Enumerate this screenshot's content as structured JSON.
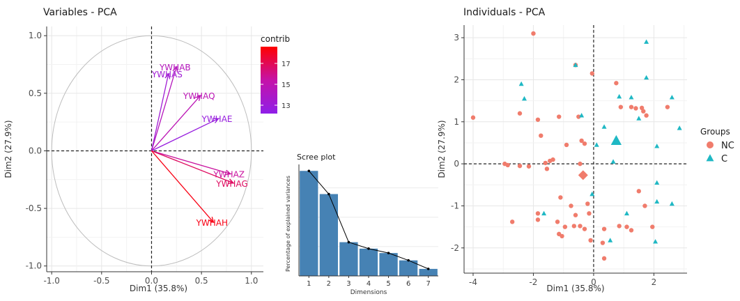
{
  "chart_data": [
    {
      "type": "scatter",
      "title": "Variables - PCA",
      "xlabel": "Dim1 (35.8%)",
      "ylabel": "Dim2 (27.9%)",
      "xlim": [
        -1.05,
        1.12
      ],
      "ylim": [
        -1.05,
        1.08
      ],
      "xticks": [
        "-1.0",
        "-0.5",
        "0.0",
        "0.5",
        "1.0"
      ],
      "yticks": [
        "-1.0",
        "-0.5",
        "0.0",
        "0.5",
        "1.0"
      ],
      "grid": true,
      "series": [
        {
          "name": "YWHAB",
          "values": [
            0.25,
            0.73
          ],
          "contrib": 14.4
        },
        {
          "name": "YWHAS",
          "values": [
            0.17,
            0.67
          ],
          "contrib": 13.2
        },
        {
          "name": "YWHAQ",
          "values": [
            0.49,
            0.48
          ],
          "contrib": 14.8
        },
        {
          "name": "YWHAE",
          "values": [
            0.67,
            0.28
          ],
          "contrib": 12.7
        },
        {
          "name": "YWHAZ",
          "values": [
            0.79,
            -0.2
          ],
          "contrib": 15.6
        },
        {
          "name": "YWHAG",
          "values": [
            0.82,
            -0.28
          ],
          "contrib": 16.8
        },
        {
          "name": "YWHAH",
          "values": [
            0.62,
            -0.62
          ],
          "contrib": 18.2
        }
      ],
      "legend": {
        "title": "contrib",
        "ticks": [
          "17",
          "15",
          "13"
        ],
        "range": [
          12.2,
          18.6
        ],
        "colors": [
          "#8f1fe8",
          "#c512a8",
          "#ff0000"
        ],
        "placement": "top-right"
      }
    },
    {
      "type": "bar",
      "title": "Scree plot",
      "xlabel": "Dimensions",
      "ylabel": "Percentage of explained variances",
      "categories": [
        "1",
        "2",
        "3",
        "4",
        "5",
        "6",
        "7"
      ],
      "values": [
        35.8,
        27.9,
        11.5,
        9.3,
        7.8,
        5.3,
        2.4
      ],
      "ylim": [
        0,
        38
      ],
      "bar_color": "#4682b4",
      "line": true
    },
    {
      "type": "scatter",
      "title": "Individuals - PCA",
      "xlabel": "Dim1 (35.8%)",
      "ylabel": "Dim2 (27.9%)",
      "xlim": [
        -4.3,
        3.1
      ],
      "ylim": [
        -2.6,
        3.3
      ],
      "xticks": [
        "-4",
        "-2",
        "0",
        "2"
      ],
      "yticks": [
        "-2",
        "-1",
        "0",
        "1",
        "2",
        "3"
      ],
      "grid": true,
      "legend": {
        "title": "Groups",
        "placement": "right"
      },
      "series": [
        {
          "name": "NC",
          "color": "#f07c6c",
          "shape": "circle",
          "centroid": [
            -0.35,
            -0.27
          ],
          "points": [
            [
              -2.0,
              3.1
            ],
            [
              -0.05,
              2.15
            ],
            [
              -4.0,
              1.1
            ],
            [
              -0.6,
              2.35
            ],
            [
              0.75,
              1.92
            ],
            [
              0.9,
              1.35
            ],
            [
              1.25,
              1.35
            ],
            [
              1.4,
              1.32
            ],
            [
              1.6,
              1.33
            ],
            [
              1.65,
              1.25
            ],
            [
              2.45,
              1.35
            ],
            [
              1.75,
              1.15
            ],
            [
              -1.85,
              1.05
            ],
            [
              -2.45,
              1.2
            ],
            [
              -1.15,
              1.12
            ],
            [
              -0.5,
              1.12
            ],
            [
              -1.75,
              0.67
            ],
            [
              -0.9,
              0.45
            ],
            [
              -0.4,
              0.55
            ],
            [
              -0.3,
              0.48
            ],
            [
              -2.95,
              0.0
            ],
            [
              -2.85,
              -0.03
            ],
            [
              -2.45,
              -0.05
            ],
            [
              -2.15,
              -0.06
            ],
            [
              -1.6,
              0.02
            ],
            [
              -1.45,
              0.07
            ],
            [
              -1.35,
              0.1
            ],
            [
              -1.55,
              -0.12
            ],
            [
              -0.45,
              0.0
            ],
            [
              1.5,
              -0.65
            ],
            [
              -1.1,
              -0.8
            ],
            [
              -0.75,
              -1.0
            ],
            [
              -0.2,
              -0.95
            ],
            [
              -0.15,
              -1.18
            ],
            [
              1.7,
              -1.0
            ],
            [
              -0.6,
              -1.22
            ],
            [
              -1.85,
              -1.33
            ],
            [
              -2.7,
              -1.38
            ],
            [
              -1.85,
              -1.18
            ],
            [
              -1.2,
              -1.38
            ],
            [
              -0.65,
              -1.48
            ],
            [
              -0.95,
              -1.5
            ],
            [
              -1.15,
              -1.67
            ],
            [
              -1.05,
              -1.72
            ],
            [
              -0.45,
              -1.48
            ],
            [
              -0.3,
              -1.55
            ],
            [
              0.35,
              -1.55
            ],
            [
              0.85,
              -1.48
            ],
            [
              1.1,
              -1.5
            ],
            [
              1.25,
              -1.58
            ],
            [
              1.95,
              -1.5
            ],
            [
              0.3,
              -1.88
            ],
            [
              -0.1,
              -1.82
            ],
            [
              0.35,
              -2.25
            ]
          ]
        },
        {
          "name": "C",
          "color": "#1fb8c4",
          "shape": "triangle",
          "centroid": [
            0.75,
            0.55
          ],
          "points": [
            [
              1.75,
              2.9
            ],
            [
              -0.6,
              2.35
            ],
            [
              -2.4,
              1.9
            ],
            [
              -2.3,
              1.55
            ],
            [
              1.75,
              2.05
            ],
            [
              0.85,
              1.6
            ],
            [
              1.25,
              1.58
            ],
            [
              2.6,
              1.58
            ],
            [
              -0.4,
              1.15
            ],
            [
              1.5,
              1.08
            ],
            [
              0.35,
              0.88
            ],
            [
              0.1,
              0.45
            ],
            [
              2.1,
              0.42
            ],
            [
              2.85,
              0.85
            ],
            [
              0.65,
              0.05
            ],
            [
              -0.05,
              -0.72
            ],
            [
              2.1,
              -0.45
            ],
            [
              2.1,
              -0.9
            ],
            [
              2.6,
              -0.95
            ],
            [
              1.1,
              -1.18
            ],
            [
              -1.65,
              -1.18
            ],
            [
              0.55,
              -1.82
            ],
            [
              2.05,
              -1.85
            ]
          ]
        }
      ],
      "legend_items": [
        {
          "label": "NC",
          "color": "#f07c6c",
          "shape": "circle"
        },
        {
          "label": "C",
          "color": "#1fb8c4",
          "shape": "triangle"
        }
      ]
    }
  ]
}
